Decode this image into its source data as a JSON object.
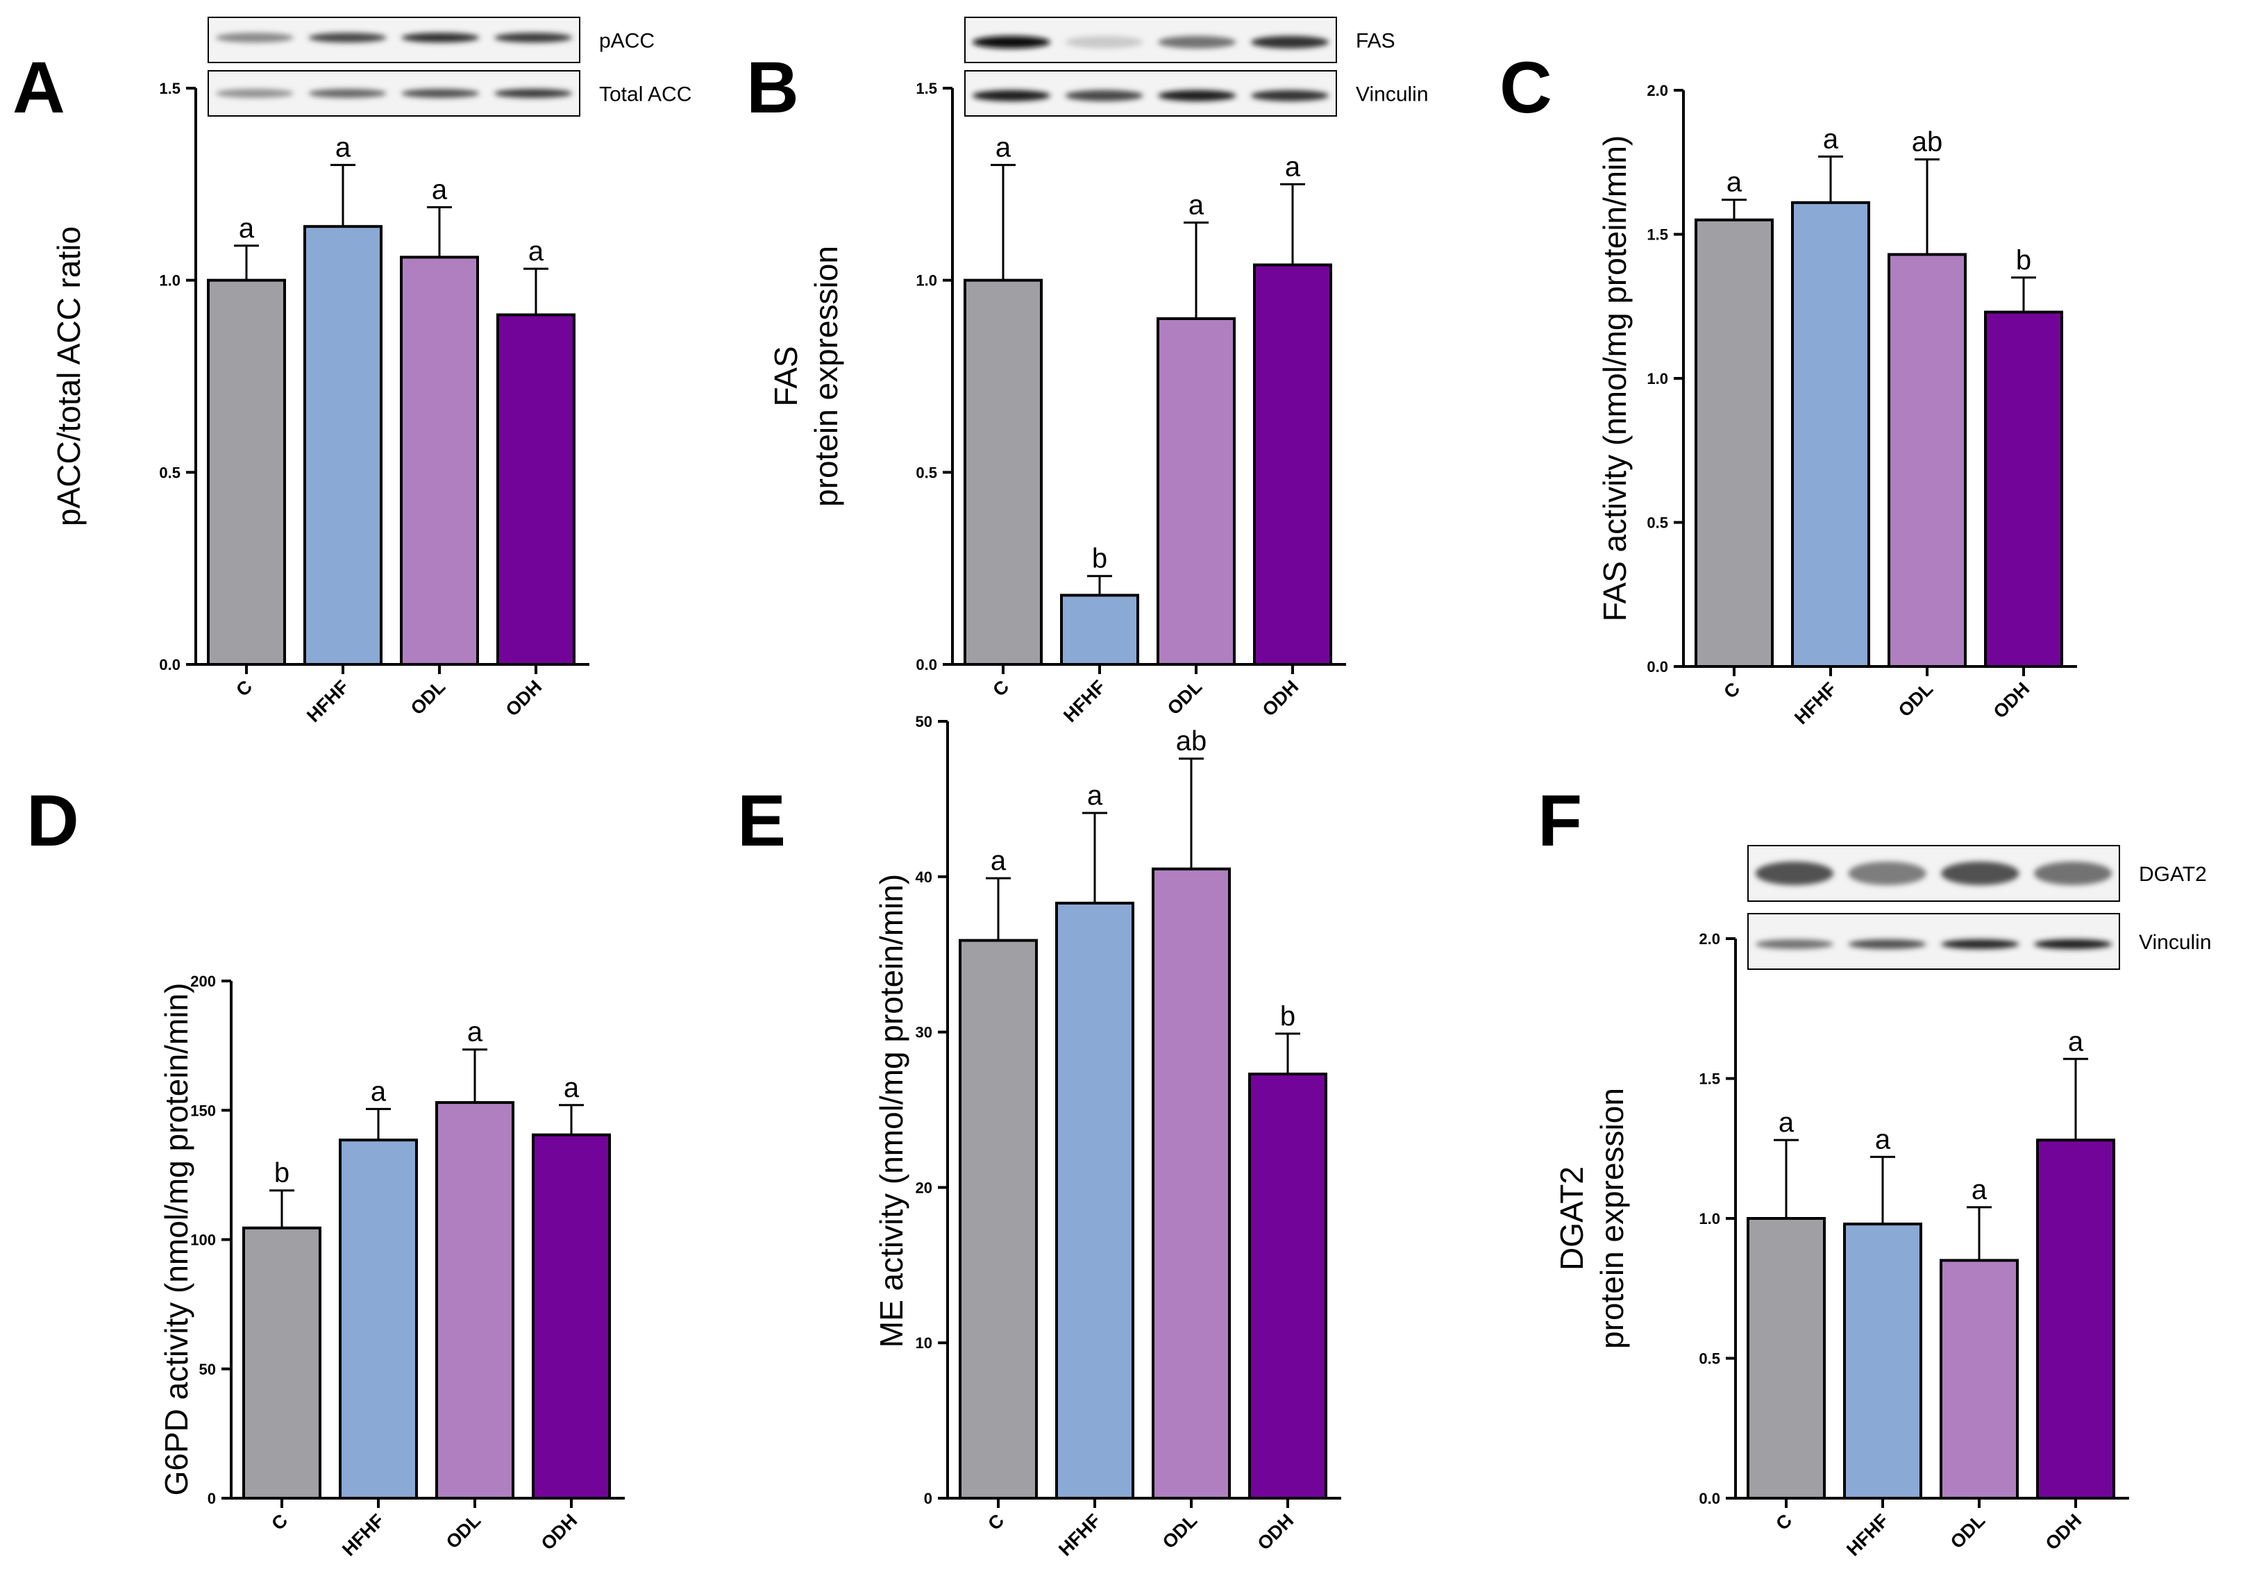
{
  "figure": {
    "categories": [
      "C",
      "HFHF",
      "ODL",
      "ODH"
    ],
    "colors": [
      "#a09fa4",
      "#8aa9d5",
      "#b07fc0",
      "#73049a"
    ]
  },
  "chart_data": [
    {
      "panel": "A",
      "type": "bar",
      "categories": [
        "C",
        "HFHF",
        "ODL",
        "ODH"
      ],
      "values": [
        1.0,
        1.14,
        1.06,
        0.91
      ],
      "errors": [
        0.09,
        0.16,
        0.13,
        0.12
      ],
      "significance": [
        "a",
        "a",
        "a",
        "a"
      ],
      "ylabel": "pACC/total ACC ratio",
      "ylim": [
        0,
        1.5
      ],
      "yticks": [
        0.0,
        0.5,
        1.0,
        1.5
      ],
      "ytick_labels": [
        "0.0",
        "0.5",
        "1.0",
        "1.5"
      ],
      "blots": [
        "pACC",
        "Total ACC"
      ]
    },
    {
      "panel": "B",
      "type": "bar",
      "categories": [
        "C",
        "HFHF",
        "ODL",
        "ODH"
      ],
      "values": [
        1.0,
        0.18,
        0.9,
        1.04
      ],
      "errors": [
        0.3,
        0.05,
        0.25,
        0.21
      ],
      "significance": [
        "a",
        "b",
        "a",
        "a"
      ],
      "ylabel": [
        "FAS",
        "protein expression"
      ],
      "ylim": [
        0,
        1.5
      ],
      "yticks": [
        0.0,
        0.5,
        1.0,
        1.5
      ],
      "ytick_labels": [
        "0.0",
        "0.5",
        "1.0",
        "1.5"
      ],
      "blots": [
        "FAS",
        "Vinculin"
      ]
    },
    {
      "panel": "C",
      "type": "bar",
      "categories": [
        "C",
        "HFHF",
        "ODL",
        "ODH"
      ],
      "values": [
        1.55,
        1.61,
        1.43,
        1.23
      ],
      "errors": [
        0.07,
        0.16,
        0.33,
        0.12
      ],
      "significance": [
        "a",
        "a",
        "ab",
        "b"
      ],
      "ylabel": "FAS activity (nmol/mg protein/min)",
      "ylim": [
        0,
        2.0
      ],
      "yticks": [
        0.0,
        0.5,
        1.0,
        1.5,
        2.0
      ],
      "ytick_labels": [
        "0.0",
        "0.5",
        "1.0",
        "1.5",
        "2.0"
      ],
      "blots": []
    },
    {
      "panel": "D",
      "type": "bar",
      "categories": [
        "C",
        "HFHF",
        "ODL",
        "ODH"
      ],
      "values": [
        104.5,
        138.5,
        153.0,
        140.5
      ],
      "errors": [
        14.5,
        12.0,
        20.5,
        11.5
      ],
      "significance": [
        "b",
        "a",
        "a",
        "a"
      ],
      "ylabel": "G6PD activity (nmol/mg protein/min)",
      "ylim": [
        0,
        200
      ],
      "yticks": [
        0,
        50,
        100,
        150,
        200
      ],
      "ytick_labels": [
        "0",
        "50",
        "100",
        "150",
        "200"
      ],
      "blots": []
    },
    {
      "panel": "E",
      "type": "bar",
      "categories": [
        "C",
        "HFHF",
        "ODL",
        "ODH"
      ],
      "values": [
        35.9,
        38.3,
        40.5,
        27.3
      ],
      "errors": [
        4.0,
        5.8,
        7.1,
        2.6
      ],
      "significance": [
        "a",
        "a",
        "ab",
        "b"
      ],
      "ylabel": "ME activity (nmol/mg protein/min)",
      "ylim": [
        0,
        50
      ],
      "yticks": [
        0,
        10,
        20,
        30,
        40,
        50
      ],
      "ytick_labels": [
        "0",
        "10",
        "20",
        "30",
        "40",
        "50"
      ],
      "blots": []
    },
    {
      "panel": "F",
      "type": "bar",
      "categories": [
        "C",
        "HFHF",
        "ODL",
        "ODH"
      ],
      "values": [
        1.0,
        0.98,
        0.85,
        1.28
      ],
      "errors": [
        0.28,
        0.24,
        0.19,
        0.29
      ],
      "significance": [
        "a",
        "a",
        "a",
        "a"
      ],
      "ylabel": [
        "DGAT2",
        "protein expression"
      ],
      "ylim": [
        0,
        2.0
      ],
      "yticks": [
        0.0,
        0.5,
        1.0,
        1.5,
        2.0
      ],
      "ytick_labels": [
        "0.0",
        "0.5",
        "1.0",
        "1.5",
        "2.0"
      ],
      "blots": [
        "DGAT2",
        "Vinculin"
      ]
    }
  ]
}
